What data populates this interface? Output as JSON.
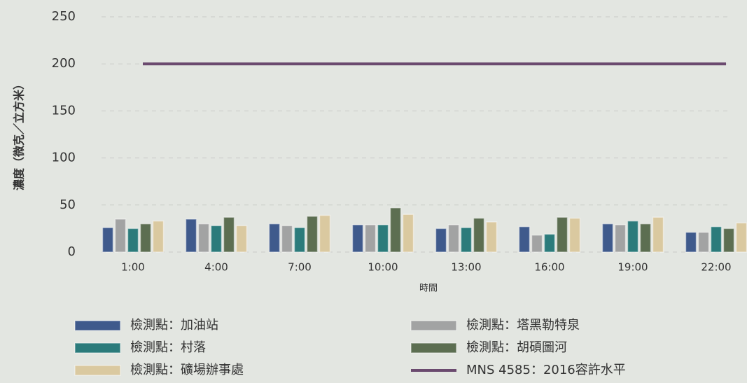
{
  "chart_data": {
    "type": "bar",
    "categories": [
      "1:00",
      "4:00",
      "7:00",
      "10:00",
      "13:00",
      "16:00",
      "19:00",
      "22:00"
    ],
    "x_label": "時間",
    "y_label": "濃度（微克／立方米）",
    "ylim": [
      0,
      250
    ],
    "yticks": [
      0,
      50,
      100,
      150,
      200,
      250
    ],
    "grid": true,
    "series": [
      {
        "name": "檢測點：加油站",
        "color": "#3f5a8c",
        "values": [
          26,
          35,
          30,
          29,
          25,
          27,
          30,
          21
        ]
      },
      {
        "name": "檢測點：塔黑勒特泉",
        "color": "#a2a3a3",
        "values": [
          35,
          30,
          28,
          29,
          29,
          18,
          29,
          21
        ]
      },
      {
        "name": "檢測點：村落",
        "color": "#2b7b7b",
        "values": [
          25,
          28,
          26,
          29,
          26,
          19,
          33,
          27
        ]
      },
      {
        "name": "檢測點：胡碩圖河",
        "color": "#5c6e51",
        "values": [
          30,
          37,
          38,
          47,
          36,
          37,
          30,
          25
        ]
      },
      {
        "name": "檢測點：礦場辦事處",
        "color": "#dac9a0",
        "values": [
          33,
          28,
          39,
          40,
          32,
          36,
          37,
          31
        ]
      },
      {
        "name": "MNS 4585：2016容許水平",
        "color": "#6b4a6f",
        "type": "line",
        "values": [
          200,
          200,
          200,
          200,
          200,
          200,
          200,
          200
        ]
      }
    ]
  }
}
